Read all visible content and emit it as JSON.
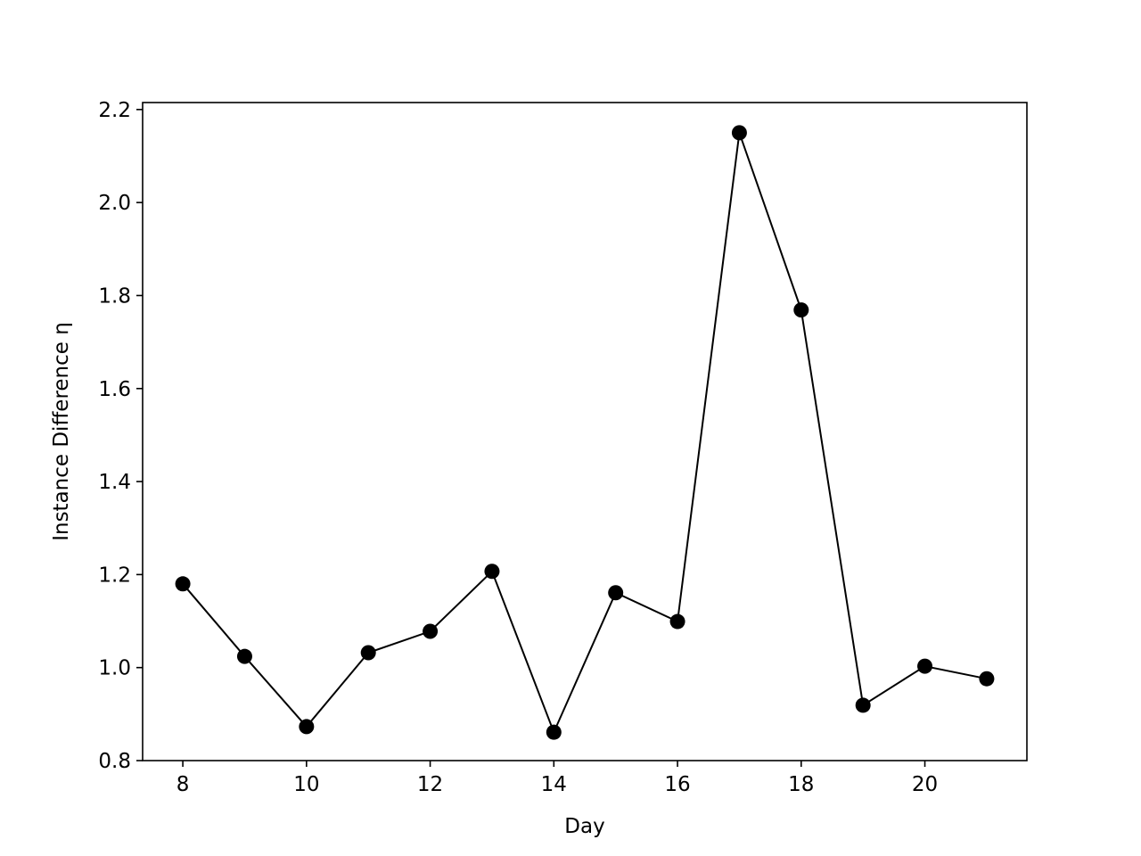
{
  "chart_data": {
    "type": "line",
    "x_label": "Day",
    "y_label": "Instance Difference η",
    "x": [
      8,
      9,
      10,
      11,
      12,
      13,
      14,
      15,
      16,
      17,
      18,
      19,
      20,
      21
    ],
    "values": [
      1.18,
      1.024,
      0.873,
      1.032,
      1.078,
      1.207,
      0.861,
      1.161,
      1.099,
      2.15,
      1.769,
      0.919,
      1.003,
      0.976
    ],
    "color": "#000000",
    "marker": "circle",
    "xlim": [
      7.35,
      21.65
    ],
    "xticks": [
      8,
      10,
      12,
      14,
      16,
      18,
      20
    ],
    "ylim": [
      0.8,
      2.215
    ],
    "yticks": [
      0.8,
      {
        "value": 1,
        "label": "1.0"
      },
      1.2,
      1.4,
      1.6,
      1.8,
      {
        "value": 2,
        "label": "2.0"
      },
      2.2
    ],
    "grid": false
  }
}
